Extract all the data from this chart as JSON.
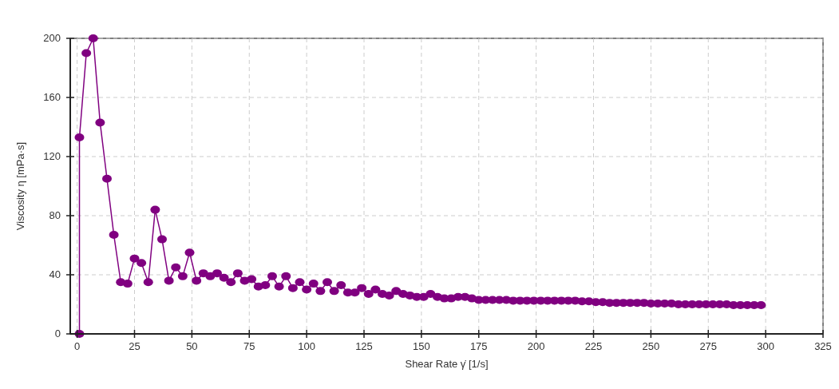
{
  "chart_data": {
    "type": "line",
    "xlabel": "Shear Rate γ̇ [1/s]",
    "ylabel": "Viscosity η [mPa·s]",
    "x": [
      1,
      1,
      4,
      7,
      10,
      13,
      16,
      19,
      22,
      25,
      28,
      31,
      34,
      37,
      40,
      43,
      46,
      49,
      52,
      55,
      58,
      61,
      64,
      67,
      70,
      73,
      76,
      79,
      82,
      85,
      88,
      91,
      94,
      97,
      100,
      103,
      106,
      109,
      112,
      115,
      118,
      121,
      124,
      127,
      130,
      133,
      136,
      139,
      142,
      145,
      148,
      151,
      154,
      157,
      160,
      163,
      166,
      169,
      172,
      175,
      178,
      181,
      184,
      187,
      190,
      193,
      196,
      199,
      202,
      205,
      208,
      211,
      214,
      217,
      220,
      223,
      226,
      229,
      232,
      235,
      238,
      241,
      244,
      247,
      250,
      253,
      256,
      259,
      262,
      265,
      268,
      271,
      274,
      277,
      280,
      283,
      286,
      289,
      292,
      295,
      298
    ],
    "series": [
      {
        "color": "#800080",
        "values": [
          0,
          133,
          190,
          200,
          143,
          105,
          67,
          35,
          34,
          51,
          48,
          35,
          84,
          64,
          36,
          45,
          39,
          55,
          36,
          41,
          39,
          41,
          38,
          35,
          41,
          36,
          37,
          32,
          33,
          39,
          32,
          39,
          31,
          35,
          30,
          34,
          29,
          35,
          29,
          33,
          28,
          28,
          31,
          27,
          30,
          27,
          26,
          29,
          27,
          26,
          25,
          25,
          27,
          25,
          24,
          24,
          25,
          25,
          24,
          23,
          23,
          23,
          23,
          23,
          22.5,
          22.5,
          22.5,
          22.5,
          22.5,
          22.5,
          22.5,
          22.5,
          22.5,
          22.5,
          22,
          22,
          21.5,
          21.5,
          21,
          21,
          21,
          21,
          21,
          21,
          20.5,
          20.5,
          20.5,
          20.5,
          20,
          20,
          20,
          20,
          20,
          20,
          20,
          20,
          19.5,
          19.5,
          19.5,
          19.5,
          19.5
        ]
      }
    ],
    "xlim": [
      -3,
      325
    ],
    "ylim": [
      0,
      200
    ],
    "xticks": [
      0,
      25,
      50,
      75,
      100,
      125,
      150,
      175,
      200,
      225,
      250,
      275,
      300,
      325
    ],
    "yticks": [
      0,
      40,
      80,
      120,
      160,
      200
    ],
    "grid": true,
    "marker": "circle",
    "line_style": "solid"
  }
}
